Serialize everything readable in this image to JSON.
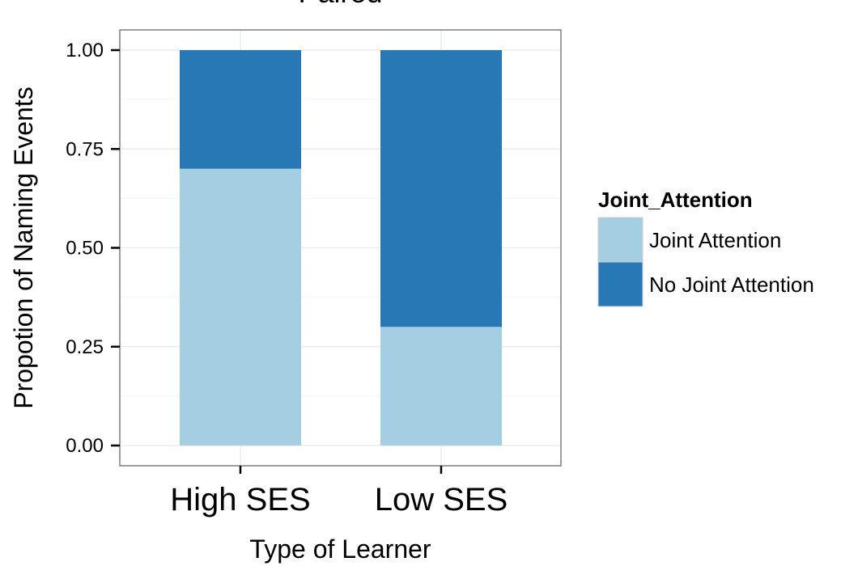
{
  "chart_data": {
    "type": "bar",
    "stacked": true,
    "title": "Paired",
    "xlabel": "Type of Learner",
    "ylabel": "Propotion of Naming Events",
    "categories": [
      "High SES",
      "Low SES"
    ],
    "ylim": [
      0,
      1
    ],
    "yticks": [
      0,
      0.25,
      0.5,
      0.75,
      1
    ],
    "ytick_labels": [
      "0.00",
      "0.25",
      "0.50",
      "0.75",
      "1.00"
    ],
    "series": [
      {
        "name": "Joint Attention",
        "values": [
          0.7,
          0.3
        ],
        "color": "#a6cee3"
      },
      {
        "name": "No Joint Attention",
        "values": [
          0.3,
          0.7
        ],
        "color": "#2878b5"
      }
    ],
    "legend": {
      "title": "Joint_Attention",
      "placement": "right"
    },
    "grid": true,
    "gridColor": "#ebebeb",
    "panelBorderColor": "#7f7f7f"
  }
}
